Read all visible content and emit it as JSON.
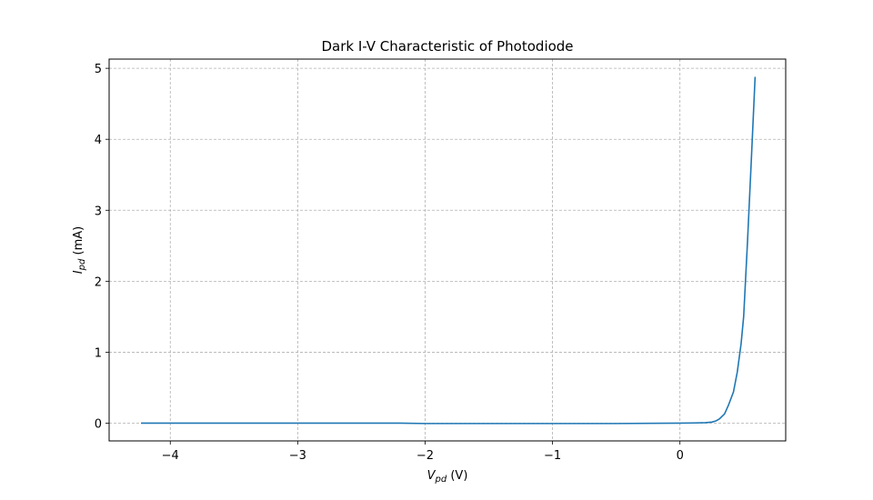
{
  "chart_data": {
    "type": "line",
    "title": "Dark I-V Characteristic of Photodiode",
    "xlabel": {
      "main": "V",
      "sub": "pd",
      "unit": " (V)"
    },
    "ylabel": {
      "main": "I",
      "sub": "pd",
      "unit": " (mA)"
    },
    "xlim": [
      -4.48,
      0.83
    ],
    "ylim": [
      -0.25,
      5.13
    ],
    "xticks": [
      -4,
      -3,
      -2,
      -1,
      0
    ],
    "xtick_labels": [
      "−4",
      "−3",
      "−2",
      "−1",
      "0"
    ],
    "yticks": [
      0,
      1,
      2,
      3,
      4,
      5
    ],
    "ytick_labels": [
      "0",
      "1",
      "2",
      "3",
      "4",
      "5"
    ],
    "grid": true,
    "series": [
      {
        "color": "#1f77b4",
        "x": [
          -4.23,
          -3.5,
          -3.0,
          -2.5,
          -2.2,
          -2.0,
          -1.5,
          -1.0,
          -0.5,
          0.0,
          0.1,
          0.2,
          0.25,
          0.28,
          0.31,
          0.35,
          0.38,
          0.42,
          0.45,
          0.48,
          0.5,
          0.53,
          0.56,
          0.59
        ],
        "y": [
          0.0,
          0.0,
          0.0,
          0.0,
          0.0,
          -0.005,
          -0.005,
          -0.005,
          -0.005,
          0.0,
          0.003,
          0.007,
          0.015,
          0.03,
          0.06,
          0.13,
          0.25,
          0.44,
          0.72,
          1.12,
          1.5,
          2.55,
          3.7,
          4.88
        ]
      }
    ]
  }
}
